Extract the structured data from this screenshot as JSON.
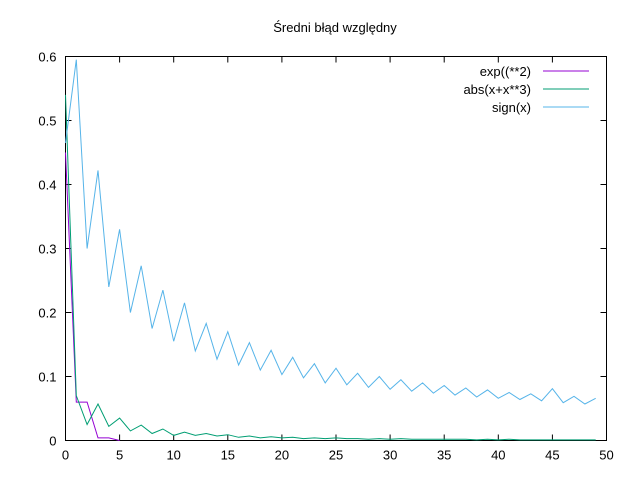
{
  "chart_data": {
    "type": "line",
    "title": "Średni błąd względny",
    "xlabel": "",
    "ylabel": "",
    "xlim": [
      0,
      50
    ],
    "ylim": [
      0,
      0.6
    ],
    "xticks": [
      "0",
      "5",
      "10",
      "15",
      "20",
      "25",
      "30",
      "35",
      "40",
      "45",
      "50"
    ],
    "yticks": [
      "0",
      "0.1",
      "0.2",
      "0.3",
      "0.4",
      "0.5",
      "0.6"
    ],
    "grid": false,
    "legend_position": "top-right",
    "series": [
      {
        "name": "exp((**2)",
        "color": "#9400d3",
        "x": [
          0,
          1,
          2,
          3,
          4,
          5
        ],
        "y": [
          0.45,
          0.06,
          0.06,
          0.004,
          0.004,
          0.0
        ]
      },
      {
        "name": "abs(x+x**3)",
        "color": "#009e73",
        "x": [
          0,
          1,
          2,
          3,
          4,
          5,
          6,
          7,
          8,
          9,
          10,
          11,
          12,
          13,
          14,
          15,
          16,
          17,
          18,
          19,
          20,
          21,
          22,
          23,
          24,
          25,
          26,
          27,
          28,
          29,
          30,
          31,
          32,
          33,
          34,
          35,
          36,
          37,
          38,
          39,
          40,
          41,
          42,
          43,
          44,
          45,
          46,
          47,
          48,
          49
        ],
        "y": [
          0.54,
          0.07,
          0.025,
          0.057,
          0.022,
          0.035,
          0.015,
          0.024,
          0.011,
          0.018,
          0.008,
          0.013,
          0.008,
          0.011,
          0.007,
          0.009,
          0.005,
          0.007,
          0.004,
          0.006,
          0.004,
          0.005,
          0.003,
          0.004,
          0.003,
          0.004,
          0.003,
          0.003,
          0.002,
          0.003,
          0.002,
          0.003,
          0.002,
          0.002,
          0.002,
          0.002,
          0.002,
          0.002,
          0.001,
          0.002,
          0.001,
          0.002,
          0.001,
          0.001,
          0.001,
          0.001,
          0.001,
          0.001,
          0.001,
          0.001
        ]
      },
      {
        "name": "sign(x)",
        "color": "#56b4e9",
        "x": [
          0,
          1,
          2,
          3,
          4,
          5,
          6,
          7,
          8,
          9,
          10,
          11,
          12,
          13,
          14,
          15,
          16,
          17,
          18,
          19,
          20,
          21,
          22,
          23,
          24,
          25,
          26,
          27,
          28,
          29,
          30,
          31,
          32,
          33,
          34,
          35,
          36,
          37,
          38,
          39,
          40,
          41,
          42,
          43,
          44,
          45,
          46,
          47,
          48,
          49
        ],
        "y": [
          0.465,
          0.595,
          0.3,
          0.422,
          0.24,
          0.33,
          0.2,
          0.273,
          0.175,
          0.235,
          0.155,
          0.215,
          0.14,
          0.183,
          0.127,
          0.17,
          0.118,
          0.153,
          0.11,
          0.141,
          0.103,
          0.13,
          0.098,
          0.12,
          0.09,
          0.113,
          0.087,
          0.105,
          0.083,
          0.1,
          0.08,
          0.095,
          0.077,
          0.09,
          0.074,
          0.086,
          0.071,
          0.082,
          0.068,
          0.079,
          0.066,
          0.075,
          0.064,
          0.073,
          0.062,
          0.081,
          0.059,
          0.069,
          0.057,
          0.066
        ]
      }
    ]
  }
}
